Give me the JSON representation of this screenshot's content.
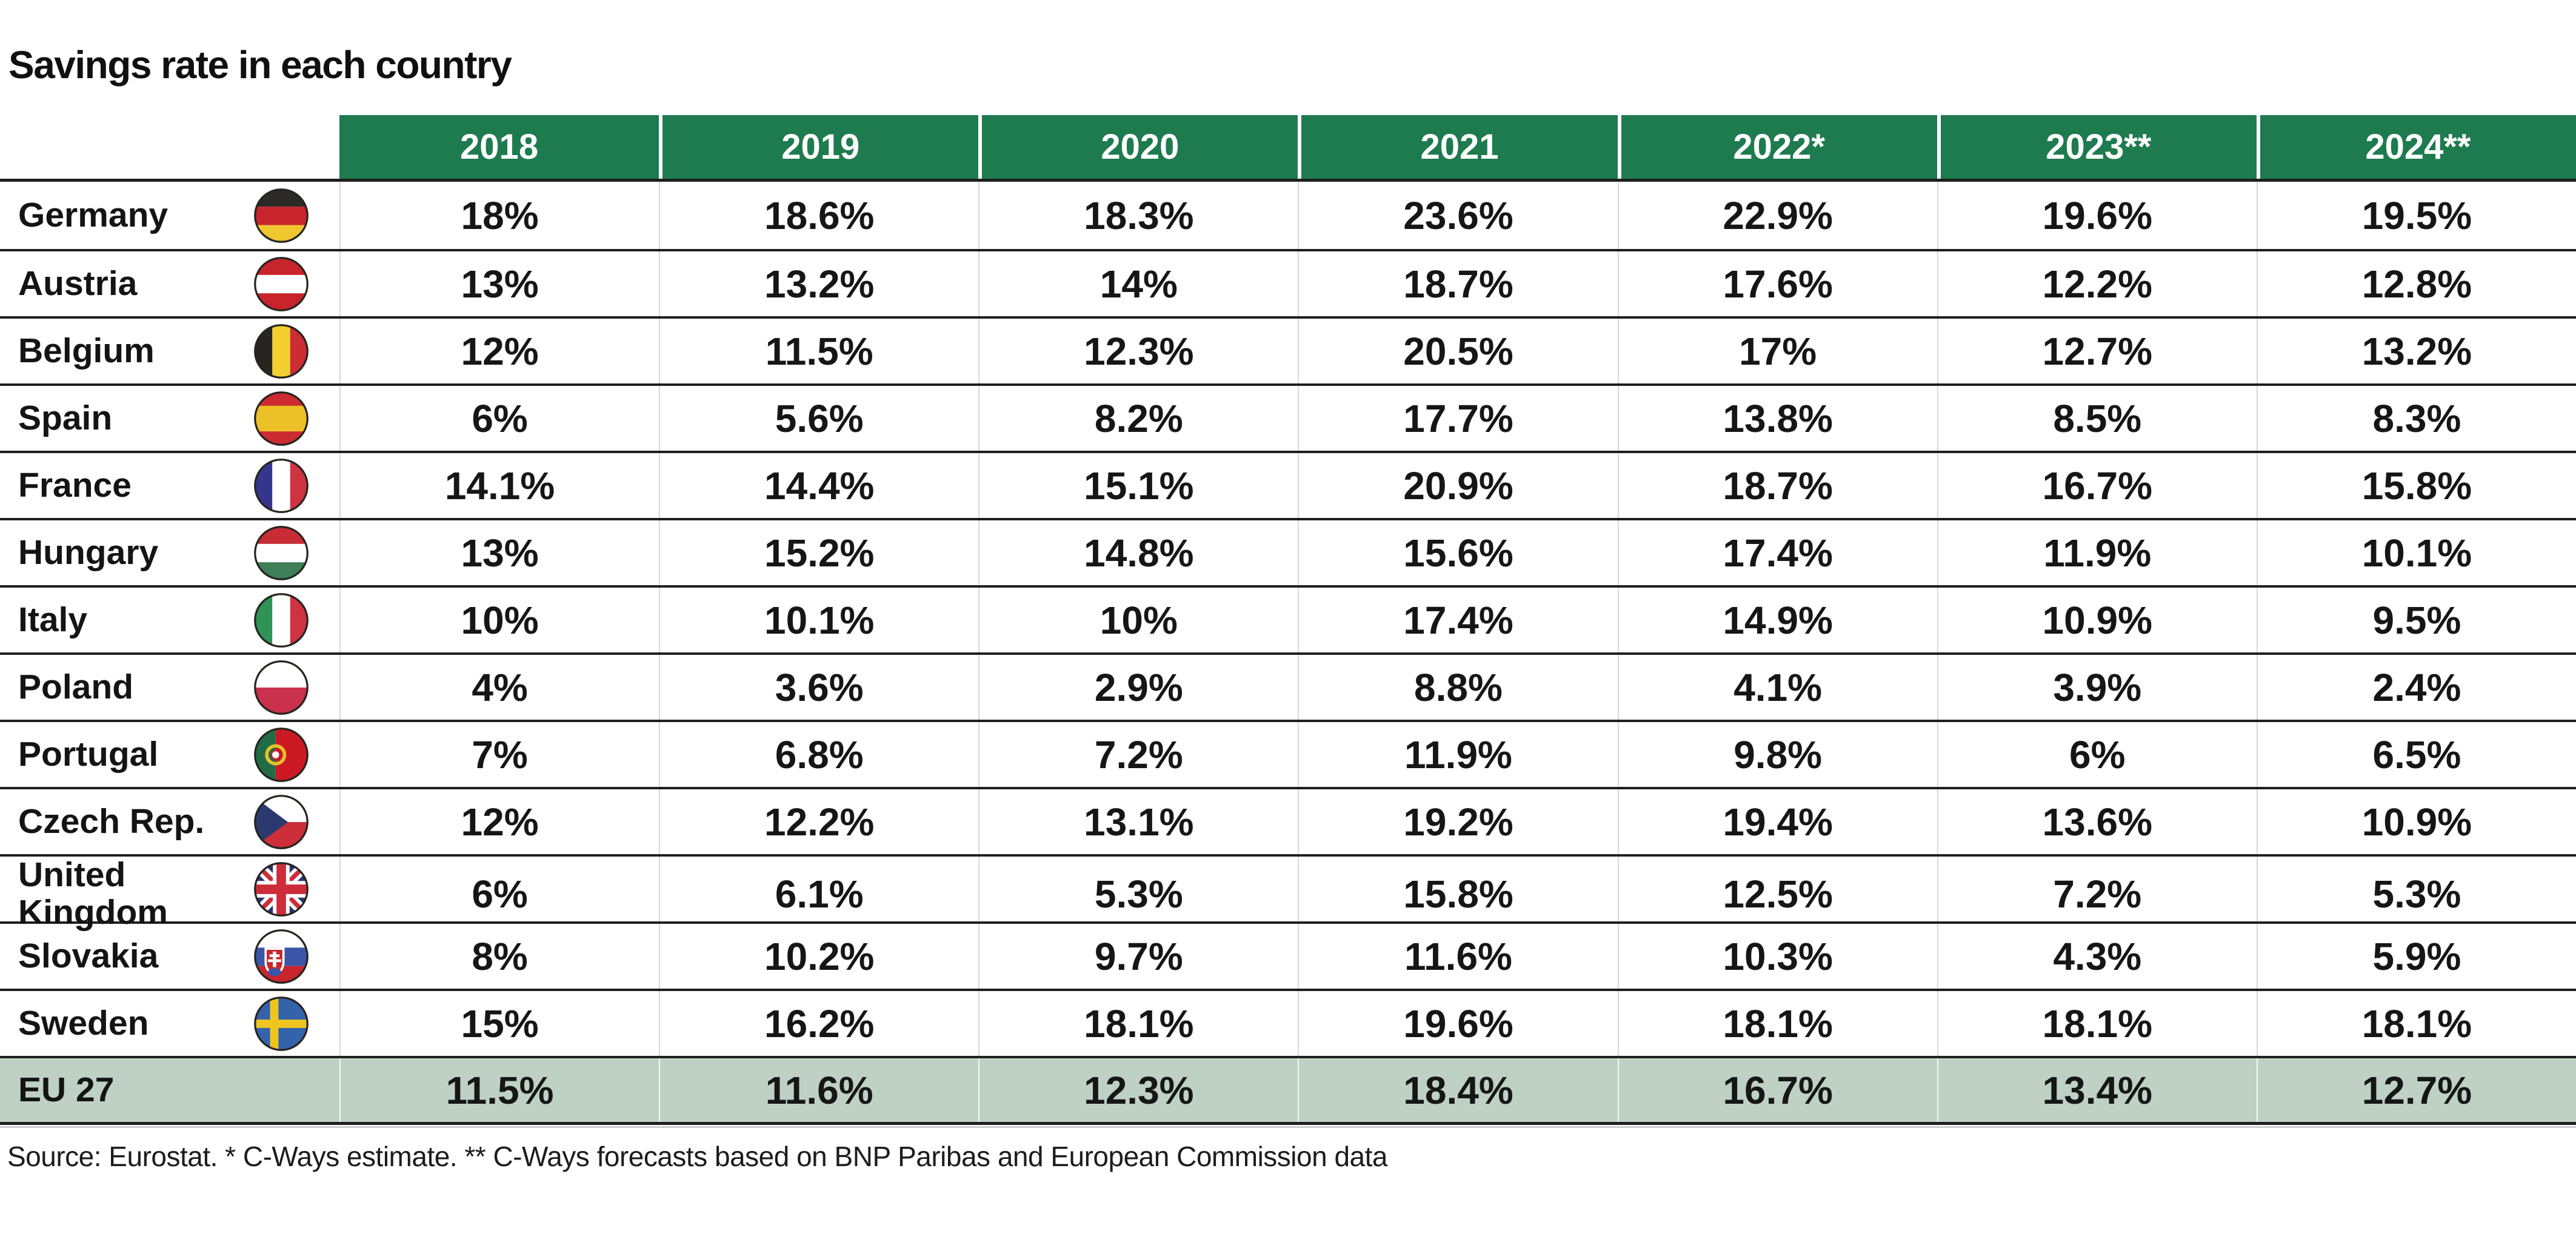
{
  "title": "Savings rate in each country",
  "source_note": "Source: Eurostat. * C-Ways estimate. ** C-Ways forecasts based on BNP Paribas and European Commission data",
  "colors": {
    "header_green": "#1e7b4f",
    "eu_row_green": "#bed1c4",
    "row_line_dark": "#1f1f1f",
    "column_line_light": "#d8d8d8",
    "header_text": "#ffffff",
    "body_text": "#161616"
  },
  "table": {
    "header_years": [
      "2018",
      "2019",
      "2020",
      "2021",
      "2022*",
      "2023**",
      "2024**"
    ],
    "rows": [
      {
        "country": "Germany",
        "flag": "germany",
        "values": [
          "18%",
          "18.6%",
          "18.3%",
          "23.6%",
          "22.9%",
          "19.6%",
          "19.5%"
        ]
      },
      {
        "country": "Austria",
        "flag": "austria",
        "values": [
          "13%",
          "13.2%",
          "14%",
          "18.7%",
          "17.6%",
          "12.2%",
          "12.8%"
        ]
      },
      {
        "country": "Belgium",
        "flag": "belgium",
        "values": [
          "12%",
          "11.5%",
          "12.3%",
          "20.5%",
          "17%",
          "12.7%",
          "13.2%"
        ]
      },
      {
        "country": "Spain",
        "flag": "spain",
        "values": [
          "6%",
          "5.6%",
          "8.2%",
          "17.7%",
          "13.8%",
          "8.5%",
          "8.3%"
        ]
      },
      {
        "country": "France",
        "flag": "france",
        "values": [
          "14.1%",
          "14.4%",
          "15.1%",
          "20.9%",
          "18.7%",
          "16.7%",
          "15.8%"
        ]
      },
      {
        "country": "Hungary",
        "flag": "hungary",
        "values": [
          "13%",
          "15.2%",
          "14.8%",
          "15.6%",
          "17.4%",
          "11.9%",
          "10.1%"
        ]
      },
      {
        "country": "Italy",
        "flag": "italy",
        "values": [
          "10%",
          "10.1%",
          "10%",
          "17.4%",
          "14.9%",
          "10.9%",
          "9.5%"
        ]
      },
      {
        "country": "Poland",
        "flag": "poland",
        "values": [
          "4%",
          "3.6%",
          "2.9%",
          "8.8%",
          "4.1%",
          "3.9%",
          "2.4%"
        ]
      },
      {
        "country": "Portugal",
        "flag": "portugal",
        "values": [
          "7%",
          "6.8%",
          "7.2%",
          "11.9%",
          "9.8%",
          "6%",
          "6.5%"
        ]
      },
      {
        "country": "Czech Rep.",
        "flag": "czechia",
        "values": [
          "12%",
          "12.2%",
          "13.1%",
          "19.2%",
          "19.4%",
          "13.6%",
          "10.9%"
        ]
      },
      {
        "country": "United Kingdom",
        "flag": "uk",
        "values": [
          "6%",
          "6.1%",
          "5.3%",
          "15.8%",
          "12.5%",
          "7.2%",
          "5.3%"
        ]
      },
      {
        "country": "Slovakia",
        "flag": "slovakia",
        "values": [
          "8%",
          "10.2%",
          "9.7%",
          "11.6%",
          "10.3%",
          "4.3%",
          "5.9%"
        ]
      },
      {
        "country": "Sweden",
        "flag": "sweden",
        "values": [
          "15%",
          "16.2%",
          "18.1%",
          "19.6%",
          "18.1%",
          "18.1%",
          "18.1%"
        ]
      },
      {
        "country": "EU 27",
        "flag": null,
        "values": [
          "11.5%",
          "11.6%",
          "12.3%",
          "18.4%",
          "16.7%",
          "13.4%",
          "12.7%"
        ],
        "highlight": true
      }
    ]
  },
  "chart_data": {
    "type": "table",
    "title": "Savings rate in each country",
    "categories": [
      "2018",
      "2019",
      "2020",
      "2021",
      "2022*",
      "2023**",
      "2024**"
    ],
    "unit": "percent",
    "series": [
      {
        "name": "Germany",
        "values": [
          18,
          18.6,
          18.3,
          23.6,
          22.9,
          19.6,
          19.5
        ]
      },
      {
        "name": "Austria",
        "values": [
          13,
          13.2,
          14,
          18.7,
          17.6,
          12.2,
          12.8
        ]
      },
      {
        "name": "Belgium",
        "values": [
          12,
          11.5,
          12.3,
          20.5,
          17,
          12.7,
          13.2
        ]
      },
      {
        "name": "Spain",
        "values": [
          6,
          5.6,
          8.2,
          17.7,
          13.8,
          8.5,
          8.3
        ]
      },
      {
        "name": "France",
        "values": [
          14.1,
          14.4,
          15.1,
          20.9,
          18.7,
          16.7,
          15.8
        ]
      },
      {
        "name": "Hungary",
        "values": [
          13,
          15.2,
          14.8,
          15.6,
          17.4,
          11.9,
          10.1
        ]
      },
      {
        "name": "Italy",
        "values": [
          10,
          10.1,
          10,
          17.4,
          14.9,
          10.9,
          9.5
        ]
      },
      {
        "name": "Poland",
        "values": [
          4,
          3.6,
          2.9,
          8.8,
          4.1,
          3.9,
          2.4
        ]
      },
      {
        "name": "Portugal",
        "values": [
          7,
          6.8,
          7.2,
          11.9,
          9.8,
          6,
          6.5
        ]
      },
      {
        "name": "Czech Rep.",
        "values": [
          12,
          12.2,
          13.1,
          19.2,
          19.4,
          13.6,
          10.9
        ]
      },
      {
        "name": "United Kingdom",
        "values": [
          6,
          6.1,
          5.3,
          15.8,
          12.5,
          7.2,
          5.3
        ]
      },
      {
        "name": "Slovakia",
        "values": [
          8,
          10.2,
          9.7,
          11.6,
          10.3,
          4.3,
          5.9
        ]
      },
      {
        "name": "Sweden",
        "values": [
          15,
          16.2,
          18.1,
          19.6,
          18.1,
          18.1,
          18.1
        ]
      },
      {
        "name": "EU 27",
        "values": [
          11.5,
          11.6,
          12.3,
          18.4,
          16.7,
          13.4,
          12.7
        ]
      }
    ],
    "footnote": "Source: Eurostat. * C-Ways estimate. ** C-Ways forecasts based on BNP Paribas and European Commission data"
  }
}
